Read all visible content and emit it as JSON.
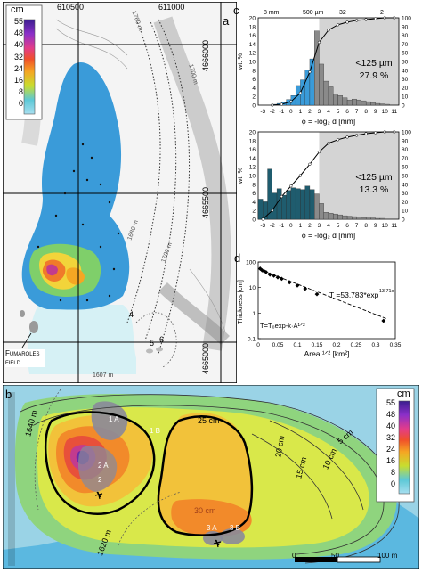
{
  "panel_a": {
    "label": "a",
    "legend_unit": "cm",
    "legend_ticks": [
      "55",
      "48",
      "40",
      "32",
      "24",
      "16",
      "8",
      "0"
    ],
    "easting_labels": [
      "610500",
      "611000"
    ],
    "northing_labels": [
      "4666000",
      "4665500",
      "4665000"
    ],
    "contour_labels": [
      "1760 m",
      "1700 m",
      "1680 m",
      "1700 m"
    ],
    "sample_numbers": [
      "4",
      "5",
      "6"
    ],
    "elevation_label": "1607 m",
    "fumaroles_label": "Fumaroles field"
  },
  "panel_b": {
    "label": "b",
    "legend_unit": "cm",
    "legend_ticks": [
      "55",
      "48",
      "40",
      "32",
      "24",
      "16",
      "8",
      "0"
    ],
    "thickness_labels": [
      "25 cm",
      "20 cm",
      "15 cm",
      "10 cm",
      "5 cm",
      "30 cm"
    ],
    "elevation_labels": [
      "1640 m",
      "1620 m"
    ],
    "site_labels": [
      "1 A",
      "1 B",
      "2 A",
      "2",
      "3 A",
      "3 B"
    ],
    "scalebar_labels": [
      "0",
      "50",
      "100 m"
    ]
  },
  "panel_c": {
    "label": "c",
    "top_axis_labels": [
      "8 mm",
      "500 µm",
      "32",
      "2"
    ],
    "charts": [
      {
        "type": "bar",
        "fine_label": "<125 µm",
        "fine_percent": "27.9 %",
        "ylabel": "wt. %",
        "y2_ticks": [
          "0",
          "10",
          "20",
          "30",
          "40",
          "50",
          "60",
          "70",
          "80",
          "90",
          "100"
        ],
        "xlabel": "ϕ = -log₂ d [mm]",
        "x_ticks": [
          "-3",
          "-2",
          "-1",
          "0",
          "1",
          "2",
          "3",
          "4",
          "5",
          "6",
          "7",
          "8",
          "9",
          "10",
          "11"
        ],
        "y_ticks": [
          "0",
          "2",
          "4",
          "6",
          "8",
          "10",
          "12",
          "14",
          "16",
          "18",
          "20"
        ],
        "ylim": [
          0,
          20
        ],
        "x": [
          -1.5,
          -1,
          -0.5,
          0,
          0.5,
          1,
          1.5,
          2,
          2.5,
          3,
          3.5,
          4,
          4.5,
          5,
          5.5,
          6,
          6.5,
          7,
          7.5,
          8,
          8.5,
          9,
          9.5,
          10,
          10.5
        ],
        "values": [
          0.2,
          0.4,
          0.7,
          1.3,
          2.2,
          4.5,
          5.8,
          8.0,
          10.6,
          17.0,
          9.4,
          5.5,
          4.2,
          2.6,
          2.2,
          1.7,
          1.2,
          1.4,
          1.2,
          1.0,
          0.8,
          0.6,
          0.4,
          0.3,
          0.2
        ],
        "cumulative_x": [
          -2,
          -1,
          0,
          1,
          2,
          3,
          4,
          5,
          6,
          7,
          8,
          9,
          10,
          11
        ],
        "cumulative": [
          0,
          1,
          4,
          14,
          38,
          72,
          86,
          92,
          95,
          97,
          98,
          99,
          100,
          100
        ]
      },
      {
        "type": "bar",
        "fine_label": "<125 µm",
        "fine_percent": "13.3 %",
        "ylabel": "wt. %",
        "y2_ticks": [
          "0",
          "10",
          "20",
          "30",
          "40",
          "50",
          "60",
          "70",
          "80",
          "90",
          "100"
        ],
        "xlabel": "ϕ = -log₂ d [mm]",
        "x_ticks": [
          "-3",
          "-2",
          "-1",
          "0",
          "1",
          "2",
          "3",
          "4",
          "5",
          "6",
          "7",
          "8",
          "9",
          "10",
          "11"
        ],
        "y_ticks": [
          "0",
          "2",
          "4",
          "6",
          "8",
          "10",
          "12",
          "14",
          "16",
          "18",
          "20"
        ],
        "ylim": [
          0,
          20
        ],
        "x": [
          -3,
          -2.5,
          -2,
          -1.5,
          -1,
          -0.5,
          0,
          0.5,
          1,
          1.5,
          2,
          2.5,
          3,
          3.5,
          4,
          4.5,
          5,
          5.5,
          6,
          6.5,
          7,
          7.5,
          8,
          8.5,
          9,
          9.5,
          10
        ],
        "values": [
          4.6,
          4.0,
          11.5,
          6.0,
          7.0,
          5.5,
          6.6,
          7.2,
          7.0,
          6.8,
          7.6,
          6.8,
          5.8,
          3.6,
          1.6,
          1.4,
          1.2,
          1.0,
          0.8,
          0.7,
          0.6,
          0.5,
          0.4,
          0.3,
          0.3,
          0.2,
          0.2
        ],
        "cumulative_x": [
          -3,
          -2,
          -1,
          0,
          1,
          2,
          3,
          4,
          5,
          6,
          7,
          8,
          9,
          10,
          11
        ],
        "cumulative": [
          0,
          10,
          26,
          38,
          50,
          63,
          77,
          87,
          91,
          94,
          96,
          98,
          99,
          100,
          100
        ]
      }
    ]
  },
  "panel_d": {
    "label": "d",
    "chart_data": {
      "type": "scatter",
      "ylabel": "Thickness [cm]",
      "xlabel": "Area ¹ᐟ² [km²]",
      "x_ticks": [
        "0",
        "0.05",
        "0.1",
        "0.15",
        "0.2",
        "0.25",
        "0.3",
        "0.35"
      ],
      "y_ticks": [
        "0.1",
        "1",
        "10",
        "100"
      ],
      "xlim": [
        0,
        0.35
      ],
      "ylim_log": [
        0.1,
        100
      ],
      "x": [
        0.005,
        0.01,
        0.015,
        0.02,
        0.03,
        0.04,
        0.05,
        0.06,
        0.08,
        0.1,
        0.12,
        0.15,
        0.32
      ],
      "y": [
        55,
        47,
        44,
        40,
        32,
        29,
        25,
        22,
        16,
        12,
        9,
        5.5,
        0.5
      ],
      "fit_label": "T =53.783*exp",
      "fit_exponent": "-13.71x",
      "model_label": "T=T₀exp-k·A¹ᐟ²"
    }
  }
}
